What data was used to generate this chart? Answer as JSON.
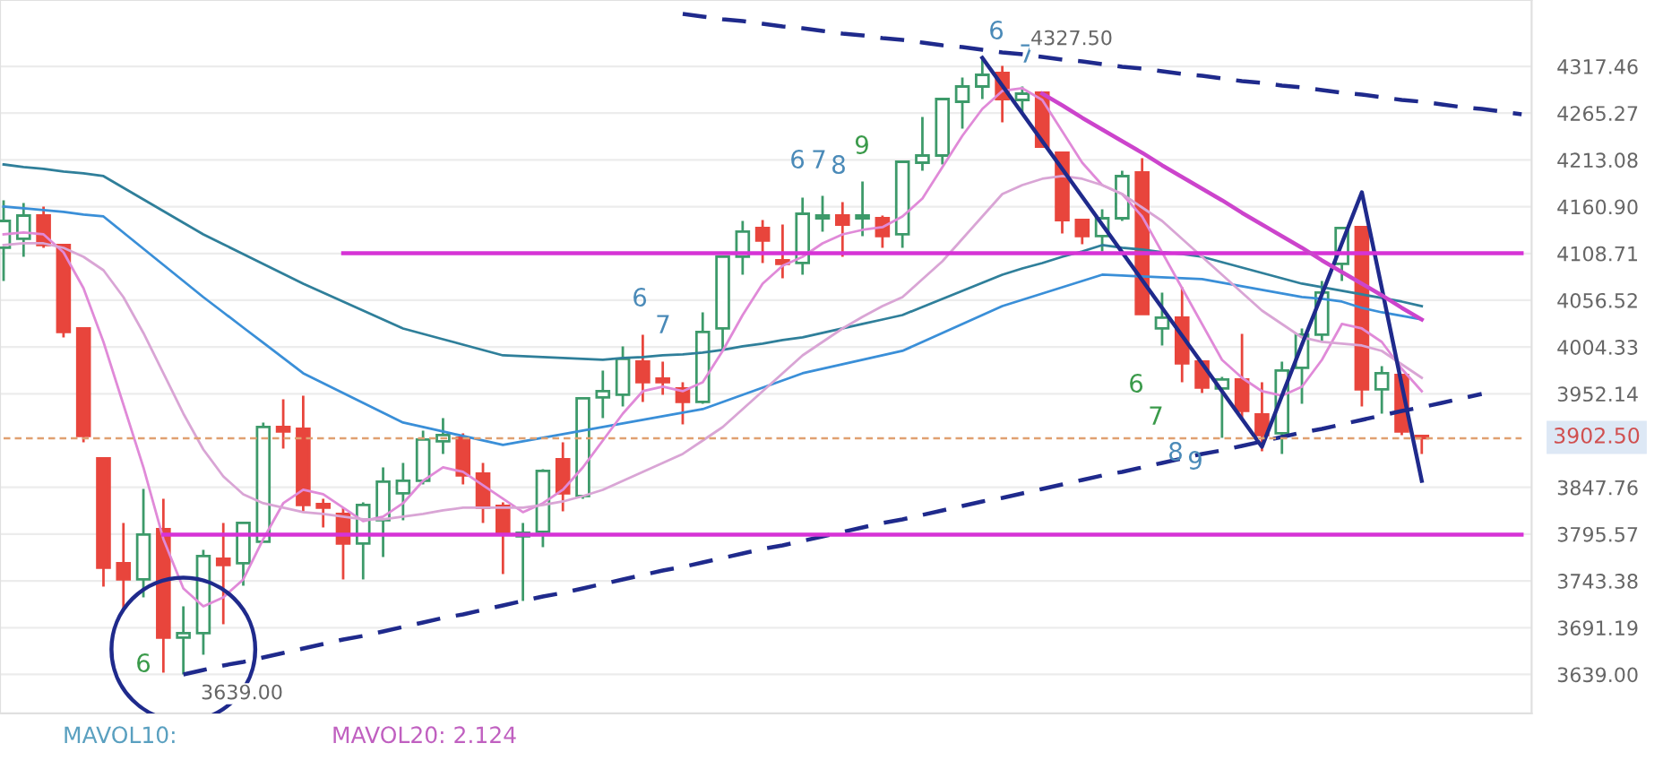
{
  "chart_data": {
    "type": "candlestick",
    "categories": [
      null,
      null,
      null,
      null,
      null,
      null,
      null,
      null,
      null,
      null,
      null,
      null,
      null,
      null,
      null,
      null,
      null,
      null,
      null,
      null,
      null,
      null,
      null,
      null,
      null,
      null,
      null,
      null,
      null,
      null,
      null,
      null,
      null,
      null,
      null,
      null,
      null,
      null,
      null,
      null,
      null,
      null,
      null,
      null,
      null,
      null,
      null,
      null,
      null,
      null,
      null,
      null,
      null,
      null,
      null,
      null,
      null,
      null,
      null,
      null,
      null,
      null,
      null,
      null,
      null,
      null,
      null,
      null,
      null,
      null,
      null,
      null,
      null,
      null,
      null,
      null,
      null
    ],
    "ohlc": [
      [
        4115,
        4168,
        4078,
        4145
      ],
      [
        4125,
        4165,
        4105,
        4151
      ],
      [
        4151,
        4161,
        4115,
        4118
      ],
      [
        4118,
        4118,
        4015,
        4021
      ],
      [
        4025,
        4025,
        3898,
        3905
      ],
      [
        3880,
        3880,
        3737,
        3758
      ],
      [
        3763,
        3808,
        3711,
        3745
      ],
      [
        3745,
        3846,
        3725,
        3795
      ],
      [
        3801,
        3835,
        3641,
        3680
      ],
      [
        3680,
        3715,
        3639,
        3685
      ],
      [
        3685,
        3778,
        3661,
        3771
      ],
      [
        3768,
        3808,
        3695,
        3761
      ],
      [
        3763,
        3808,
        3738,
        3808
      ],
      [
        3787,
        3920,
        3787,
        3915
      ],
      [
        3915,
        3946,
        3891,
        3910
      ],
      [
        3913,
        3950,
        3821,
        3828
      ],
      [
        3829,
        3835,
        3803,
        3825
      ],
      [
        3818,
        3825,
        3745,
        3785
      ],
      [
        3785,
        3831,
        3745,
        3828
      ],
      [
        3811,
        3870,
        3770,
        3854
      ],
      [
        3841,
        3875,
        3811,
        3855
      ],
      [
        3855,
        3911,
        3851,
        3901
      ],
      [
        3899,
        3925,
        3885,
        3906
      ],
      [
        3903,
        3908,
        3851,
        3861
      ],
      [
        3863,
        3875,
        3808,
        3825
      ],
      [
        3827,
        3831,
        3751,
        3796
      ],
      [
        3793,
        3808,
        3721,
        3797
      ],
      [
        3798,
        3868,
        3781,
        3866
      ],
      [
        3879,
        3898,
        3821,
        3841
      ],
      [
        3838,
        3947,
        3835,
        3947
      ],
      [
        3948,
        3978,
        3925,
        3955
      ],
      [
        3951,
        4005,
        3938,
        3991
      ],
      [
        3988,
        4018,
        3943,
        3965
      ],
      [
        3969,
        3988,
        3951,
        3965
      ],
      [
        3958,
        3965,
        3918,
        3943
      ],
      [
        3943,
        4043,
        3941,
        4021
      ],
      [
        4025,
        4105,
        4001,
        4105
      ],
      [
        4105,
        4145,
        4085,
        4133
      ],
      [
        4137,
        4146,
        4098,
        4123
      ],
      [
        4101,
        4141,
        4081,
        4097
      ],
      [
        4098,
        4171,
        4085,
        4153
      ],
      [
        4148,
        4173,
        4133,
        4151
      ],
      [
        4151,
        4166,
        4105,
        4141
      ],
      [
        4148,
        4189,
        4128,
        4151
      ],
      [
        4148,
        4151,
        4115,
        4128
      ],
      [
        4130,
        4211,
        4115,
        4211
      ],
      [
        4210,
        4261,
        4201,
        4218
      ],
      [
        4218,
        4281,
        4208,
        4281
      ],
      [
        4278,
        4305,
        4248,
        4295
      ],
      [
        4295,
        4327.5,
        4281,
        4308
      ],
      [
        4310,
        4318,
        4255,
        4281
      ],
      [
        4280,
        4295,
        4265,
        4287
      ],
      [
        4288,
        4288,
        4228,
        4228
      ],
      [
        4221,
        4221,
        4131,
        4146
      ],
      [
        4146,
        4146,
        4119,
        4128
      ],
      [
        4128,
        4158,
        4111,
        4148
      ],
      [
        4148,
        4201,
        4145,
        4195
      ],
      [
        4199,
        4215,
        4041,
        4041
      ],
      [
        4025,
        4065,
        4006,
        4037
      ],
      [
        4037,
        4071,
        3965,
        3986
      ],
      [
        3988,
        3988,
        3953,
        3959
      ],
      [
        3958,
        3971,
        3903,
        3968
      ],
      [
        3968,
        4019,
        3925,
        3933
      ],
      [
        3929,
        3965,
        3888,
        3906
      ],
      [
        3908,
        3988,
        3885,
        3978
      ],
      [
        3981,
        4025,
        3941,
        4018
      ],
      [
        4018,
        4078,
        4011,
        4065
      ],
      [
        4097,
        4138,
        4078,
        4137
      ],
      [
        4138,
        4138,
        3938,
        3957
      ],
      [
        3957,
        3983,
        3930,
        3975
      ],
      [
        3973,
        3973,
        3906,
        3910
      ],
      [
        3905,
        3906,
        3885,
        3902.5
      ],
      null,
      null,
      null,
      null,
      null
    ],
    "colors": [
      "#3d9a6a",
      "#3d9a6a",
      "#e8453c",
      "#e8453c",
      "#e8453c",
      "#e8453c",
      "#e8453c",
      "#3d9a6a",
      "#e8453c",
      "#3d9a6a",
      "#3d9a6a",
      "#e8453c",
      "#3d9a6a",
      "#3d9a6a",
      "#e8453c",
      "#e8453c",
      "#e8453c",
      "#e8453c",
      "#3d9a6a",
      "#3d9a6a",
      "#3d9a6a",
      "#3d9a6a",
      "#3d9a6a",
      "#e8453c",
      "#e8453c",
      "#e8453c",
      "#3d9a6a",
      "#3d9a6a",
      "#e8453c",
      "#3d9a6a",
      "#3d9a6a",
      "#3d9a6a",
      "#e8453c",
      "#e8453c",
      "#e8453c",
      "#3d9a6a",
      "#3d9a6a",
      "#3d9a6a",
      "#e8453c",
      "#e8453c",
      "#3d9a6a",
      "#3d9a6a",
      "#e8453c",
      "#3d9a6a",
      "#e8453c",
      "#3d9a6a",
      "#3d9a6a",
      "#3d9a6a",
      "#3d9a6a",
      "#3d9a6a",
      "#e8453c",
      "#3d9a6a",
      "#e8453c",
      "#e8453c",
      "#e8453c",
      "#3d9a6a",
      "#3d9a6a",
      "#e8453c",
      "#3d9a6a",
      "#e8453c",
      "#e8453c",
      "#3d9a6a",
      "#e8453c",
      "#e8453c",
      "#3d9a6a",
      "#3d9a6a",
      "#3d9a6a",
      "#3d9a6a",
      "#e8453c",
      "#3d9a6a",
      "#e8453c",
      "#e8453c",
      null,
      null,
      null,
      null,
      null
    ],
    "series": [
      {
        "type": "line",
        "color": "#2f7f9a",
        "values": [
          4208,
          4205,
          4203,
          4200,
          4198,
          4195,
          4182,
          4169,
          4156,
          4143,
          4130,
          4119,
          4108,
          4097,
          4086,
          4075,
          4065,
          4055,
          4045,
          4035,
          4025,
          4019,
          4013,
          4007,
          4001,
          3995,
          3994,
          3993,
          3992,
          3991,
          3990,
          3992,
          3993,
          3995,
          3996,
          3998,
          4001,
          4005,
          4008,
          4012,
          4015,
          4020,
          4025,
          4030,
          4035,
          4040,
          4049,
          4058,
          4067,
          4076,
          4085,
          4092,
          4098,
          4105,
          4111,
          4118,
          4115,
          4113,
          4110,
          4108,
          4105,
          4099,
          4093,
          4087,
          4081,
          4075,
          4071,
          4067,
          4063,
          4059,
          4055,
          4050,
          null,
          null,
          null,
          null,
          null
        ]
      },
      {
        "type": "line",
        "color": "#3a8fd8",
        "values": [
          4161,
          4159,
          4157,
          4155,
          4152,
          4150,
          4132,
          4114,
          4096,
          4078,
          4060,
          4043,
          4026,
          4009,
          3992,
          3975,
          3964,
          3953,
          3942,
          3931,
          3920,
          3915,
          3910,
          3905,
          3900,
          3895,
          3899,
          3903,
          3907,
          3911,
          3915,
          3919,
          3923,
          3927,
          3931,
          3935,
          3943,
          3951,
          3959,
          3967,
          3975,
          3980,
          3985,
          3990,
          3995,
          4000,
          4010,
          4020,
          4030,
          4040,
          4050,
          4057,
          4064,
          4071,
          4078,
          4085,
          4084,
          4083,
          4082,
          4081,
          4080,
          4076,
          4072,
          4068,
          4064,
          4060,
          4058,
          4055,
          4048,
          4043,
          4039,
          4035,
          null,
          null,
          null,
          null,
          null
        ]
      },
      {
        "type": "line",
        "color": "#e08ad8",
        "values": [
          4130,
          4132,
          4130,
          4110,
          4070,
          4010,
          3940,
          3870,
          3790,
          3735,
          3715,
          3725,
          3745,
          3790,
          3830,
          3845,
          3840,
          3825,
          3810,
          3815,
          3830,
          3855,
          3870,
          3865,
          3850,
          3835,
          3820,
          3830,
          3845,
          3870,
          3900,
          3930,
          3955,
          3960,
          3955,
          3965,
          4000,
          4040,
          4075,
          4095,
          4105,
          4120,
          4130,
          4135,
          4138,
          4150,
          4170,
          4205,
          4240,
          4270,
          4290,
          4293,
          4280,
          4245,
          4210,
          4185,
          4175,
          4150,
          4110,
          4070,
          4030,
          3990,
          3970,
          3955,
          3950,
          3960,
          3990,
          4030,
          4025,
          4010,
          3980,
          3955,
          null,
          null,
          null,
          null,
          null
        ]
      },
      {
        "type": "line",
        "color": "#d9a5d5",
        "values": [
          4118,
          4120,
          4120,
          4115,
          4105,
          4090,
          4060,
          4020,
          3975,
          3930,
          3890,
          3860,
          3840,
          3830,
          3825,
          3820,
          3818,
          3815,
          3812,
          3812,
          3815,
          3818,
          3822,
          3825,
          3825,
          3825,
          3825,
          3828,
          3832,
          3838,
          3845,
          3855,
          3865,
          3875,
          3885,
          3900,
          3915,
          3935,
          3955,
          3975,
          3995,
          4010,
          4025,
          4038,
          4050,
          4060,
          4080,
          4100,
          4125,
          4150,
          4175,
          4185,
          4192,
          4195,
          4192,
          4185,
          4175,
          4160,
          4145,
          4125,
          4105,
          4085,
          4065,
          4045,
          4030,
          4015,
          4010,
          4008,
          4006,
          4000,
          3985,
          3970,
          null,
          null,
          null,
          null,
          null
        ]
      },
      {
        "type": "line",
        "color": "#1f2a8c",
        "line_style": "dashed",
        "values": [
          null,
          null,
          null,
          null,
          null,
          null,
          null,
          null,
          null,
          null,
          null,
          null,
          null,
          null,
          null,
          null,
          null,
          null,
          null,
          null,
          null,
          null,
          null,
          null,
          null,
          null,
          null,
          null,
          null,
          null,
          null,
          null,
          null,
          null,
          4376,
          4373,
          4370,
          4368,
          4365,
          4362,
          4360,
          4357,
          4354,
          4352,
          4349,
          4347,
          4344,
          4341,
          4339,
          4336,
          4333,
          4331,
          4328,
          4325,
          4323,
          4320,
          4317,
          4315,
          4312,
          4309,
          4307,
          4304,
          4301,
          4299,
          4296,
          4294,
          4291,
          4288,
          4286,
          4283,
          4280,
          4278,
          4275,
          4272,
          4270,
          4267,
          4264
        ]
      },
      {
        "type": "line",
        "color": "#1f2a8c",
        "line_style": "dashed",
        "values": [
          null,
          null,
          null,
          null,
          null,
          null,
          null,
          null,
          null,
          3639,
          3644,
          3649,
          3653,
          3658,
          3663,
          3668,
          3673,
          3678,
          3682,
          3687,
          3692,
          3697,
          3702,
          3706,
          3711,
          3716,
          3721,
          3726,
          3730,
          3735,
          3740,
          3745,
          3750,
          3755,
          3759,
          3764,
          3769,
          3774,
          3779,
          3783,
          3788,
          3793,
          3798,
          3803,
          3808,
          3812,
          3817,
          3822,
          3827,
          3832,
          3836,
          3841,
          3846,
          3851,
          3856,
          3861,
          3865,
          3870,
          3875,
          3880,
          3885,
          3889,
          3894,
          3899,
          3904,
          3909,
          3913,
          3918,
          3923,
          3928,
          3933,
          3937,
          3942,
          3947,
          3952,
          null,
          null
        ]
      },
      {
        "type": "line",
        "color": "#1f2a8c",
        "line_style": "solid",
        "values": [
          null,
          null,
          null,
          null,
          null,
          null,
          null,
          null,
          null,
          null,
          null,
          null,
          null,
          null,
          null,
          null,
          null,
          null,
          null,
          null,
          null,
          null,
          null,
          null,
          null,
          null,
          null,
          null,
          null,
          null,
          null,
          null,
          null,
          null,
          null,
          null,
          null,
          null,
          null,
          null,
          null,
          null,
          null,
          null,
          null,
          null,
          null,
          null,
          null,
          4327,
          4296,
          4265,
          4234,
          4203,
          4172,
          4141,
          4110,
          4079,
          4048,
          4017,
          3986,
          3955,
          3924,
          3893,
          3950,
          4007,
          4063,
          4120,
          4177,
          4070,
          3962,
          3855,
          null,
          null,
          null,
          null,
          null
        ]
      },
      {
        "type": "line",
        "color": "#d633d6",
        "line_style": "solid",
        "values": [
          null,
          null,
          null,
          null,
          null,
          null,
          null,
          null,
          null,
          null,
          null,
          null,
          null,
          null,
          null,
          null,
          null,
          4109,
          4109,
          4109,
          4109,
          4109,
          4109,
          4109,
          4109,
          4109,
          4109,
          4109,
          4109,
          4109,
          4109,
          4109,
          4109,
          4109,
          4109,
          4109,
          4109,
          4109,
          4109,
          4109,
          4109,
          4109,
          4109,
          4109,
          4109,
          4109,
          4109,
          4109,
          4109,
          4109,
          4109,
          4109,
          4109,
          4109,
          4109,
          4109,
          4109,
          4109,
          4109,
          4109,
          4109,
          4109,
          4109,
          4109,
          4109,
          4109,
          4109,
          4109,
          4109,
          4109,
          4109,
          4109,
          4109,
          4109,
          4109,
          4109,
          4109
        ]
      },
      {
        "type": "line",
        "color": "#d633d6",
        "line_style": "solid",
        "values": [
          null,
          null,
          null,
          null,
          null,
          null,
          null,
          null,
          3795,
          3795,
          3795,
          3795,
          3795,
          3795,
          3795,
          3795,
          3795,
          3795,
          3795,
          3795,
          3795,
          3795,
          3795,
          3795,
          3795,
          3795,
          3795,
          3795,
          3795,
          3795,
          3795,
          3795,
          3795,
          3795,
          3795,
          3795,
          3795,
          3795,
          3795,
          3795,
          3795,
          3795,
          3795,
          3795,
          3795,
          3795,
          3795,
          3795,
          3795,
          3795,
          3795,
          3795,
          3795,
          3795,
          3795,
          3795,
          3795,
          3795,
          3795,
          3795,
          3795,
          3795,
          3795,
          3795,
          3795,
          3795,
          3795,
          3795,
          3795,
          3795,
          3795,
          3795,
          3795,
          3795,
          3795,
          3795,
          3795
        ]
      },
      {
        "type": "line",
        "color": "#e0a070",
        "line_style": "dotted",
        "values": [
          3902.5,
          3902.5,
          3902.5,
          3902.5,
          3902.5,
          3902.5,
          3902.5,
          3902.5,
          3902.5,
          3902.5,
          3902.5,
          3902.5,
          3902.5,
          3902.5,
          3902.5,
          3902.5,
          3902.5,
          3902.5,
          3902.5,
          3902.5,
          3902.5,
          3902.5,
          3902.5,
          3902.5,
          3902.5,
          3902.5,
          3902.5,
          3902.5,
          3902.5,
          3902.5,
          3902.5,
          3902.5,
          3902.5,
          3902.5,
          3902.5,
          3902.5,
          3902.5,
          3902.5,
          3902.5,
          3902.5,
          3902.5,
          3902.5,
          3902.5,
          3902.5,
          3902.5,
          3902.5,
          3902.5,
          3902.5,
          3902.5,
          3902.5,
          3902.5,
          3902.5,
          3902.5,
          3902.5,
          3902.5,
          3902.5,
          3902.5,
          3902.5,
          3902.5,
          3902.5,
          3902.5,
          3902.5,
          3902.5,
          3902.5,
          3902.5,
          3902.5,
          3902.5,
          3902.5,
          3902.5,
          3902.5,
          3902.5,
          3902.5,
          3902.5,
          3902.5,
          3902.5,
          3902.5,
          3902.5
        ]
      },
      {
        "type": "line",
        "color": "#cc44cc",
        "line_style": "solid",
        "values": [
          null,
          null,
          null,
          null,
          null,
          null,
          null,
          null,
          null,
          null,
          null,
          null,
          null,
          null,
          null,
          null,
          null,
          null,
          null,
          null,
          null,
          null,
          null,
          null,
          null,
          null,
          null,
          null,
          null,
          null,
          null,
          null,
          null,
          null,
          null,
          null,
          null,
          null,
          null,
          null,
          null,
          null,
          null,
          null,
          null,
          null,
          null,
          null,
          null,
          null,
          null,
          null,
          4287,
          4274,
          4260,
          4247,
          4234,
          4221,
          4207,
          4194,
          4181,
          4168,
          4154,
          4141,
          4128,
          4115,
          4101,
          4088,
          4075,
          4062,
          4048,
          4035,
          null,
          null,
          null,
          null,
          null
        ]
      }
    ],
    "ylim": [
      3595.5,
      4391.5
    ],
    "yticks": [
      {
        "value": 4317.46,
        "label": "4317.46"
      },
      {
        "value": 4265.27,
        "label": "4265.27"
      },
      {
        "value": 4213.08,
        "label": "4213.08"
      },
      {
        "value": 4160.9,
        "label": "4160.90"
      },
      {
        "value": 4108.71,
        "label": "4108.71"
      },
      {
        "value": 4056.52,
        "label": "4056.52"
      },
      {
        "value": 4004.33,
        "label": "4004.33"
      },
      {
        "value": 3952.14,
        "label": "3952.14"
      },
      {
        "value": 3847.76,
        "label": "3847.76"
      },
      {
        "value": 3795.57,
        "label": "3795.57"
      },
      {
        "value": 3743.38,
        "label": "3743.38"
      },
      {
        "value": 3691.19,
        "label": "3691.19"
      },
      {
        "value": 3639.0,
        "label": "3639.00"
      }
    ],
    "grid": "y",
    "tick_labels": "y",
    "annotations": [
      "6",
      "6",
      "7",
      "6",
      "7",
      "8",
      "9",
      "6",
      "7",
      "6",
      "7",
      "8",
      "9",
      "4327.50",
      "3639.00",
      "3902.50",
      "MAVOL10:",
      "MAVOL20: 2.124"
    ]
  }
}
